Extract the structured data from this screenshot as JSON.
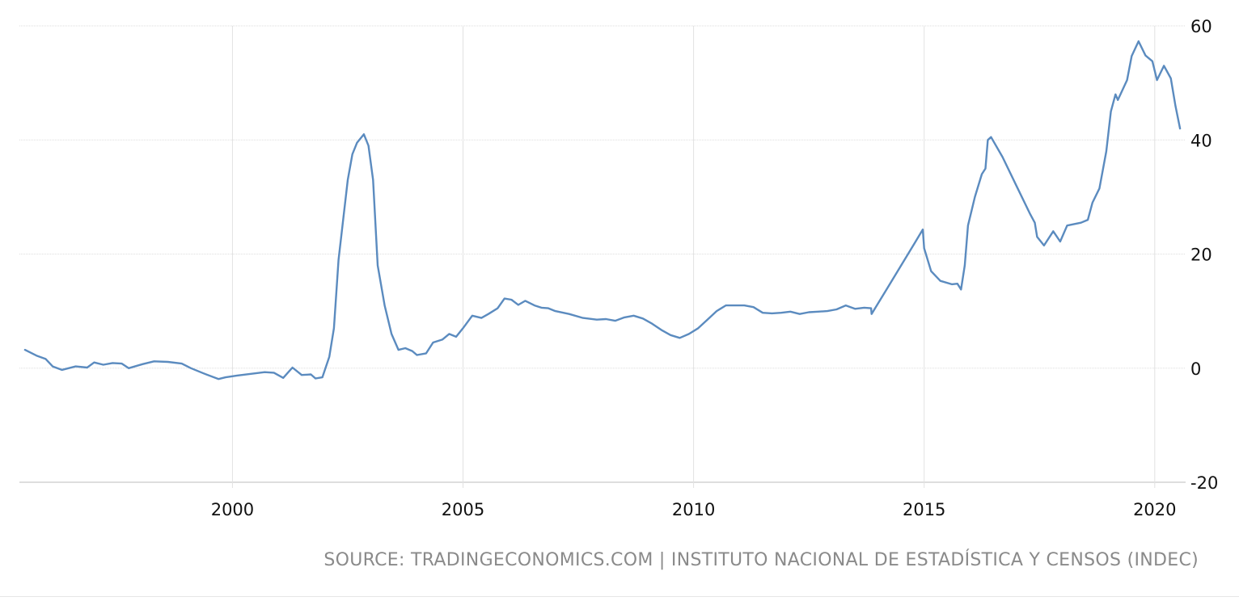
{
  "source": "SOURCE: TRADINGECONOMICS.COM | INSTITUTO NACIONAL DE ESTADÍSTICA Y CENSOS (INDEC)",
  "chart_data": {
    "type": "line",
    "title": "",
    "xlabel": "",
    "ylabel": "",
    "xlim": [
      1995.5,
      2020.55
    ],
    "ylim": [
      -20,
      60
    ],
    "x_ticks": [
      2000,
      2005,
      2010,
      2015,
      2020
    ],
    "x_tick_labels": [
      "2000",
      "2005",
      "2010",
      "2015",
      "2020"
    ],
    "y_ticks": [
      60,
      40,
      20,
      0,
      -20
    ],
    "y_tick_labels": [
      "60",
      "40",
      "20",
      "0",
      "-20"
    ],
    "grid": true,
    "y_axis_side": "right",
    "line_color": "#5b8bbf",
    "series": [
      {
        "values": [
          [
            1995.5,
            3.2
          ],
          [
            1995.75,
            2.2
          ],
          [
            1995.95,
            1.6
          ],
          [
            1996.1,
            0.3
          ],
          [
            1996.3,
            -0.3
          ],
          [
            1996.6,
            0.3
          ],
          [
            1996.85,
            0.1
          ],
          [
            1997.0,
            1.0
          ],
          [
            1997.2,
            0.6
          ],
          [
            1997.4,
            0.9
          ],
          [
            1997.6,
            0.8
          ],
          [
            1997.75,
            0.0
          ],
          [
            1998.05,
            0.7
          ],
          [
            1998.3,
            1.2
          ],
          [
            1998.6,
            1.1
          ],
          [
            1998.9,
            0.8
          ],
          [
            1999.1,
            0.0
          ],
          [
            1999.4,
            -1.0
          ],
          [
            1999.7,
            -1.9
          ],
          [
            1999.85,
            -1.6
          ],
          [
            2000.1,
            -1.3
          ],
          [
            2000.4,
            -1.0
          ],
          [
            2000.7,
            -0.7
          ],
          [
            2000.9,
            -0.8
          ],
          [
            2001.1,
            -1.7
          ],
          [
            2001.3,
            0.1
          ],
          [
            2001.5,
            -1.2
          ],
          [
            2001.7,
            -1.1
          ],
          [
            2001.8,
            -1.8
          ],
          [
            2001.95,
            -1.6
          ],
          [
            2002.1,
            2.0
          ],
          [
            2002.2,
            7.0
          ],
          [
            2002.3,
            19.0
          ],
          [
            2002.4,
            26.0
          ],
          [
            2002.5,
            33.0
          ],
          [
            2002.6,
            37.5
          ],
          [
            2002.7,
            39.5
          ],
          [
            2002.85,
            41.0
          ],
          [
            2002.95,
            39.0
          ],
          [
            2003.05,
            33.0
          ],
          [
            2003.15,
            18.0
          ],
          [
            2003.3,
            11.0
          ],
          [
            2003.45,
            6.0
          ],
          [
            2003.6,
            3.2
          ],
          [
            2003.75,
            3.5
          ],
          [
            2003.9,
            3.0
          ],
          [
            2004.0,
            2.3
          ],
          [
            2004.2,
            2.6
          ],
          [
            2004.35,
            4.5
          ],
          [
            2004.55,
            5.0
          ],
          [
            2004.7,
            6.0
          ],
          [
            2004.85,
            5.5
          ],
          [
            2005.0,
            7.0
          ],
          [
            2005.2,
            9.2
          ],
          [
            2005.4,
            8.8
          ],
          [
            2005.55,
            9.5
          ],
          [
            2005.75,
            10.5
          ],
          [
            2005.9,
            12.2
          ],
          [
            2006.05,
            12.0
          ],
          [
            2006.2,
            11.1
          ],
          [
            2006.35,
            11.8
          ],
          [
            2006.55,
            11.0
          ],
          [
            2006.7,
            10.6
          ],
          [
            2006.85,
            10.5
          ],
          [
            2007.0,
            10.0
          ],
          [
            2007.3,
            9.5
          ],
          [
            2007.6,
            8.8
          ],
          [
            2007.9,
            8.5
          ],
          [
            2008.1,
            8.6
          ],
          [
            2008.3,
            8.3
          ],
          [
            2008.5,
            8.9
          ],
          [
            2008.7,
            9.2
          ],
          [
            2008.9,
            8.7
          ],
          [
            2009.1,
            7.8
          ],
          [
            2009.3,
            6.7
          ],
          [
            2009.5,
            5.8
          ],
          [
            2009.7,
            5.3
          ],
          [
            2009.9,
            6.0
          ],
          [
            2010.1,
            7.0
          ],
          [
            2010.3,
            8.5
          ],
          [
            2010.5,
            10.0
          ],
          [
            2010.7,
            11.0
          ],
          [
            2010.9,
            11.0
          ],
          [
            2011.1,
            11.0
          ],
          [
            2011.3,
            10.7
          ],
          [
            2011.5,
            9.7
          ],
          [
            2011.7,
            9.6
          ],
          [
            2011.9,
            9.7
          ],
          [
            2012.1,
            9.9
          ],
          [
            2012.3,
            9.5
          ],
          [
            2012.5,
            9.8
          ],
          [
            2012.7,
            9.9
          ],
          [
            2012.9,
            10.0
          ],
          [
            2013.1,
            10.3
          ],
          [
            2013.3,
            11.0
          ],
          [
            2013.5,
            10.4
          ],
          [
            2013.7,
            10.6
          ],
          [
            2013.85,
            10.5
          ],
          [
            2013.86,
            9.5
          ],
          [
            2014.2,
            14.0
          ],
          [
            2014.5,
            18.0
          ],
          [
            2014.8,
            22.0
          ],
          [
            2014.97,
            24.3
          ],
          [
            2015.0,
            21.0
          ],
          [
            2015.15,
            17.0
          ],
          [
            2015.35,
            15.3
          ],
          [
            2015.6,
            14.7
          ],
          [
            2015.72,
            14.8
          ],
          [
            2015.8,
            13.8
          ],
          [
            2015.88,
            18.0
          ],
          [
            2015.95,
            25.0
          ],
          [
            2016.1,
            30.0
          ],
          [
            2016.25,
            34.0
          ],
          [
            2016.33,
            35.0
          ],
          [
            2016.38,
            40.0
          ],
          [
            2016.45,
            40.5
          ],
          [
            2016.7,
            37.0
          ],
          [
            2017.0,
            32.0
          ],
          [
            2017.3,
            27.0
          ],
          [
            2017.4,
            25.5
          ],
          [
            2017.45,
            23.0
          ],
          [
            2017.6,
            21.5
          ],
          [
            2017.8,
            24.0
          ],
          [
            2017.95,
            22.2
          ],
          [
            2018.1,
            25.0
          ],
          [
            2018.4,
            25.5
          ],
          [
            2018.55,
            26.0
          ],
          [
            2018.65,
            29.0
          ],
          [
            2018.8,
            31.5
          ],
          [
            2018.95,
            38.0
          ],
          [
            2019.05,
            45.0
          ],
          [
            2019.15,
            48.0
          ],
          [
            2019.2,
            47.0
          ],
          [
            2019.4,
            50.5
          ],
          [
            2019.5,
            54.7
          ],
          [
            2019.65,
            57.3
          ],
          [
            2019.8,
            54.8
          ],
          [
            2019.95,
            53.8
          ],
          [
            2020.05,
            50.5
          ],
          [
            2020.2,
            53.0
          ],
          [
            2020.35,
            50.8
          ],
          [
            2020.45,
            46.0
          ],
          [
            2020.55,
            42.0
          ]
        ]
      }
    ]
  }
}
